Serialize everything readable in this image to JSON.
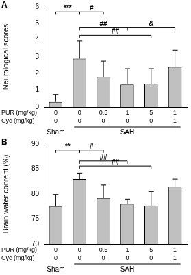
{
  "chart_data": [
    {
      "type": "bar",
      "panel": "A",
      "y_label": "Neurological scores",
      "x_rows": [
        {
          "label": "PUR (mg/kg)",
          "values": [
            "0",
            "0",
            "0.5",
            "1",
            "5",
            "1"
          ]
        },
        {
          "label": "Cyc (mg/kg)",
          "values": [
            "0",
            "0",
            "0",
            "0",
            "0",
            "1"
          ]
        }
      ],
      "groups": [
        {
          "label": "Sham",
          "first": 0,
          "last": 0
        },
        {
          "label": "SAH",
          "first": 1,
          "last": 5
        }
      ],
      "values": [
        0.3,
        2.9,
        1.8,
        1.35,
        1.4,
        2.4
      ],
      "errors": [
        0.45,
        1.05,
        0.95,
        0.95,
        0.9,
        1.0
      ],
      "color": "#c0c0c0",
      "ylim": [
        0,
        6
      ],
      "yticks": [
        0,
        1,
        2,
        3,
        4,
        5,
        6
      ],
      "grid": false,
      "comparisons": [
        {
          "from": 0,
          "to": 1,
          "label": "***",
          "y": 5.7
        },
        {
          "from": 1,
          "to": 2,
          "label": "#",
          "y": 5.7
        },
        {
          "from": 1,
          "to": 3,
          "label": "##",
          "y": 4.75
        },
        {
          "from": 3,
          "to": 5,
          "label": "&",
          "y": 4.75
        },
        {
          "from": 1,
          "to": 4,
          "label": "##",
          "y": 4.3
        }
      ]
    },
    {
      "type": "bar",
      "panel": "B",
      "y_label": "Brain water content (%)",
      "x_rows": [
        {
          "label": "PUR (mg/kg)",
          "values": [
            "0",
            "0",
            "0.5",
            "1",
            "5",
            "1"
          ]
        },
        {
          "label": "Cyc (mg/kg)",
          "values": [
            "0",
            "0",
            "0",
            "0",
            "0",
            "1"
          ]
        }
      ],
      "groups": [
        {
          "label": "Sham",
          "first": 0,
          "last": 0
        },
        {
          "label": "SAH",
          "first": 1,
          "last": 5
        }
      ],
      "values": [
        77.5,
        83.0,
        79.2,
        78.0,
        77.7,
        81.5
      ],
      "errors": [
        2.4,
        1.2,
        2.6,
        1.0,
        2.8,
        1.5
      ],
      "color": "#c0c0c0",
      "ylim": [
        70,
        90
      ],
      "yticks": [
        70,
        75,
        80,
        85,
        90
      ],
      "grid": false,
      "comparisons": [
        {
          "from": 0,
          "to": 1,
          "label": "**",
          "y": 88.8
        },
        {
          "from": 1,
          "to": 2,
          "label": "#",
          "y": 88.8
        },
        {
          "from": 1,
          "to": 3,
          "label": "##",
          "y": 86.6
        },
        {
          "from": 1,
          "to": 4,
          "label": "##",
          "y": 85.6
        }
      ]
    }
  ]
}
